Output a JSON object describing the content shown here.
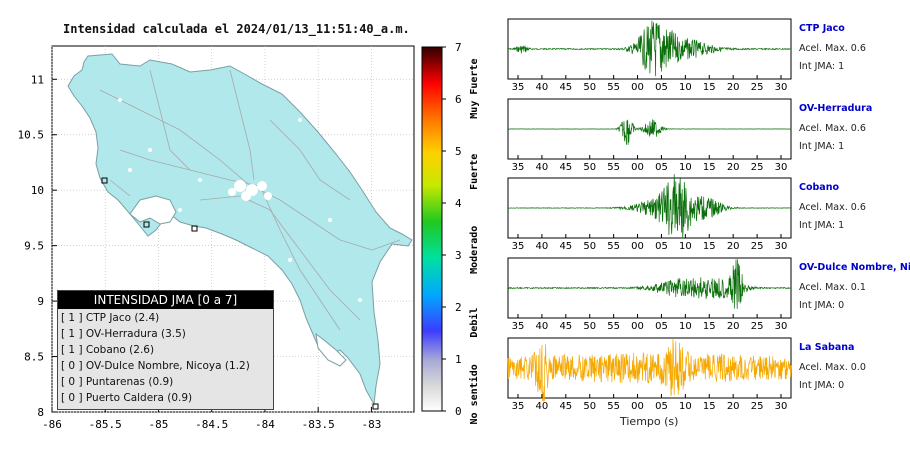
{
  "title": "Intensidad calculada el 2024/01/13_11:51:40_a.m.",
  "chart_data": [
    {
      "type": "map",
      "title": "Intensidad calculada el 2024/01/13_11:51:40_a.m.",
      "xlim": [
        -86,
        -82.6
      ],
      "ylim": [
        8,
        11.3
      ],
      "x_ticks": [
        "-86",
        "-85.5",
        "-85",
        "-84.5",
        "-84",
        "-83.5",
        "-83"
      ],
      "y_ticks": [
        "8",
        "8.5",
        "9",
        "9.5",
        "10",
        "10.5",
        "11"
      ],
      "grid": true,
      "colorbar": {
        "range": [
          0,
          7
        ],
        "ticks": [
          "0",
          "1",
          "2",
          "3",
          "4",
          "5",
          "6",
          "7"
        ],
        "categories": [
          "No sentido",
          "Debil",
          "Moderado",
          "Fuerte",
          "Muy Fuerte"
        ]
      },
      "legend": {
        "title": "INTENSIDAD JMA [0 a 7]",
        "entries": [
          {
            "jma": "[ 1 ]",
            "station": "CTP Jaco (2.4)"
          },
          {
            "jma": "[ 1 ]",
            "station": "OV-Herradura (3.5)"
          },
          {
            "jma": "[ 1 ]",
            "station": "Cobano (2.6)"
          },
          {
            "jma": "[ 0 ]",
            "station": "OV-Dulce Nombre, Nicoya (1.2)"
          },
          {
            "jma": "[ 0 ]",
            "station": "Puntarenas (0.9)"
          },
          {
            "jma": "[ 0 ]",
            "station": "Puerto Caldera (0.9)"
          }
        ]
      }
    },
    {
      "type": "line",
      "xlabel": "Tiempo (s)",
      "x_tick_labels": [
        "35",
        "40",
        "45",
        "50",
        "55",
        "00",
        "05",
        "10",
        "15",
        "20",
        "25",
        "30"
      ],
      "series": [
        {
          "name": "CTP Jaco",
          "acel_label": "Acel. Max. 0.6",
          "jma_label": "Int JMA: 1",
          "color": "#0a6e0a"
        },
        {
          "name": "OV-Herradura",
          "acel_label": "Acel. Max. 0.6",
          "jma_label": "Int JMA: 1",
          "color": "#0a6e0a"
        },
        {
          "name": "Cobano",
          "acel_label": "Acel. Max. 0.6",
          "jma_label": "Int JMA: 1",
          "color": "#0a6e0a"
        },
        {
          "name": "OV-Dulce Nombre, Nicoya",
          "acel_label": "Acel. Max. 0.1",
          "jma_label": "Int JMA: 0",
          "color": "#0a6e0a"
        },
        {
          "name": "La Sabana",
          "acel_label": "Acel. Max. 0.0",
          "jma_label": "Int JMA: 0",
          "color": "#f5a800"
        }
      ]
    }
  ]
}
